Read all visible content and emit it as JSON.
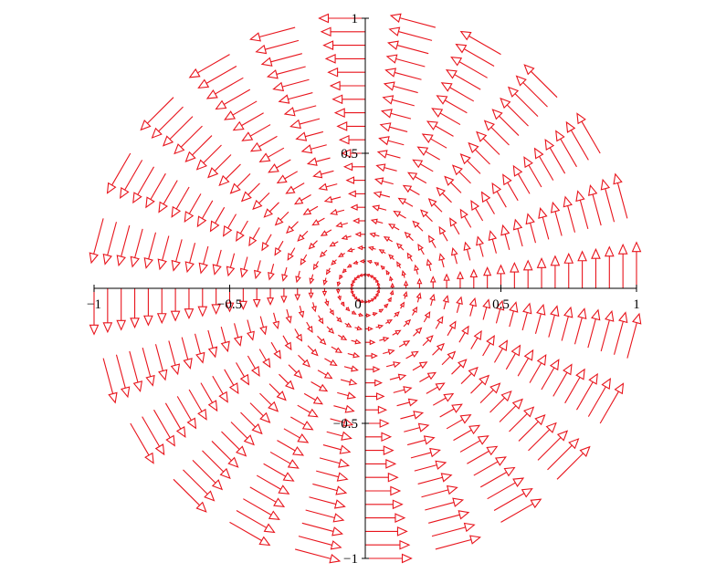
{
  "chart_data": {
    "type": "vector_field",
    "title": "",
    "xlabel": "",
    "ylabel": "",
    "xlim": [
      -1,
      1
    ],
    "ylim": [
      -1,
      1
    ],
    "grid": false,
    "field": {
      "description_of_vectors": "tangential (rotational) field",
      "radii": [
        0.05,
        0.1,
        0.15,
        0.2,
        0.25,
        0.3,
        0.35,
        0.4,
        0.45,
        0.5,
        0.55,
        0.6,
        0.65,
        0.7,
        0.75,
        0.8,
        0.85,
        0.9,
        0.95,
        1.0
      ],
      "angles_deg": [
        0,
        15,
        30,
        45,
        60,
        75,
        90,
        105,
        120,
        135,
        150,
        165,
        180,
        195,
        210,
        225,
        240,
        255,
        270,
        285,
        300,
        315,
        330,
        345
      ],
      "vector": "(-y, x)",
      "arrow_scale": 0.17
    },
    "x_ticks": [
      {
        "value": -1,
        "label": "−1"
      },
      {
        "value": -0.5,
        "label": "−0.5"
      },
      {
        "value": 0,
        "label": "0"
      },
      {
        "value": 0.5,
        "label": "0.5"
      },
      {
        "value": 1,
        "label": "1"
      }
    ],
    "y_ticks": [
      {
        "value": 1,
        "label": "1"
      },
      {
        "value": 0.5,
        "label": "0.5"
      },
      {
        "value": -0.5,
        "label": "−0.5"
      },
      {
        "value": -1,
        "label": "−1"
      }
    ],
    "colors": {
      "arrow": "#e8141c",
      "axis": "#000000"
    }
  }
}
